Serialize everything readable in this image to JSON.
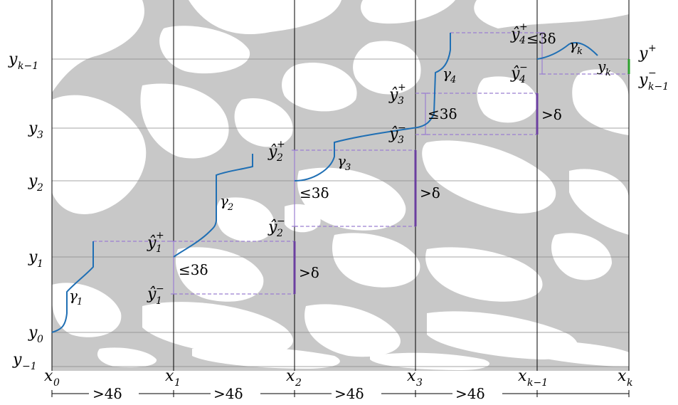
{
  "diagram": {
    "y_labels": {
      "y_km1": "y_{k-1}",
      "y3": "y_3",
      "y2": "y_2",
      "y1": "y_1",
      "y0": "y_0",
      "y_m1": "y_{-1}"
    },
    "x_labels": [
      "x_0",
      "x_1",
      "x_2",
      "x_3",
      "x_{k-1}",
      "x_k"
    ],
    "gamma_labels": [
      "γ_1",
      "γ_2",
      "γ_3",
      "γ_4",
      "γ_k"
    ],
    "yhat_labels": {
      "y1p": "ŷ_1^+",
      "y1m": "ŷ_1^-",
      "y2p": "ŷ_2^+",
      "y2m": "ŷ_2^-",
      "y3p": "ŷ_3^+",
      "y3m": "ŷ_3^-",
      "y4p": "ŷ_4^+",
      "y4m": "ŷ_4^-"
    },
    "le3delta": "≤3δ",
    "gtdelta": ">δ",
    "gt4delta": ">4δ",
    "right_labels": {
      "yplus": "y^+",
      "yk": "y_k",
      "yminus": "y_{k-1}^-"
    },
    "colors": {
      "blob": "#c8c8c8",
      "curve": "#1f6fb4",
      "dashed": "#9b7fd1",
      "bracket": "#6b3fa0",
      "green": "#2ca02c",
      "grid": "#888888"
    }
  }
}
